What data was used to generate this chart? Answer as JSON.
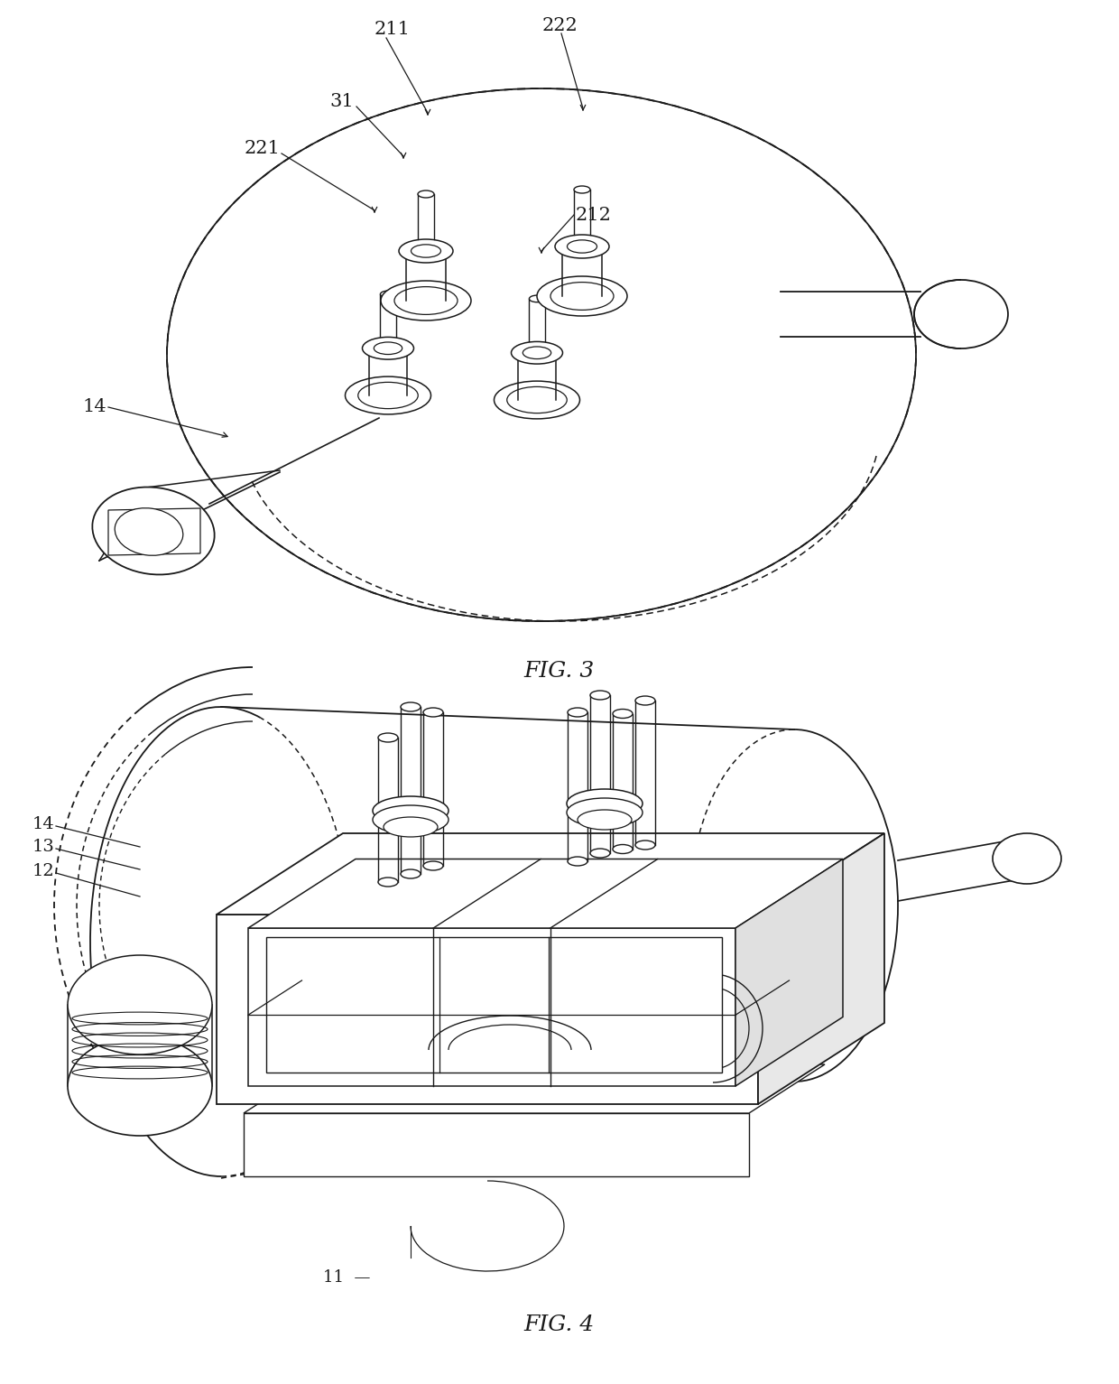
{
  "fig_width": 12.4,
  "fig_height": 15.33,
  "dpi": 100,
  "bg_color": "#ffffff",
  "lc": "#1a1a1a",
  "lw_main": 1.3,
  "lw_thin": 0.9,
  "dash": [
    5,
    3
  ],
  "fig3_title": "FIG. 3",
  "fig4_title": "FIG. 4",
  "title_fontsize": 18,
  "label_fontsize": 14
}
